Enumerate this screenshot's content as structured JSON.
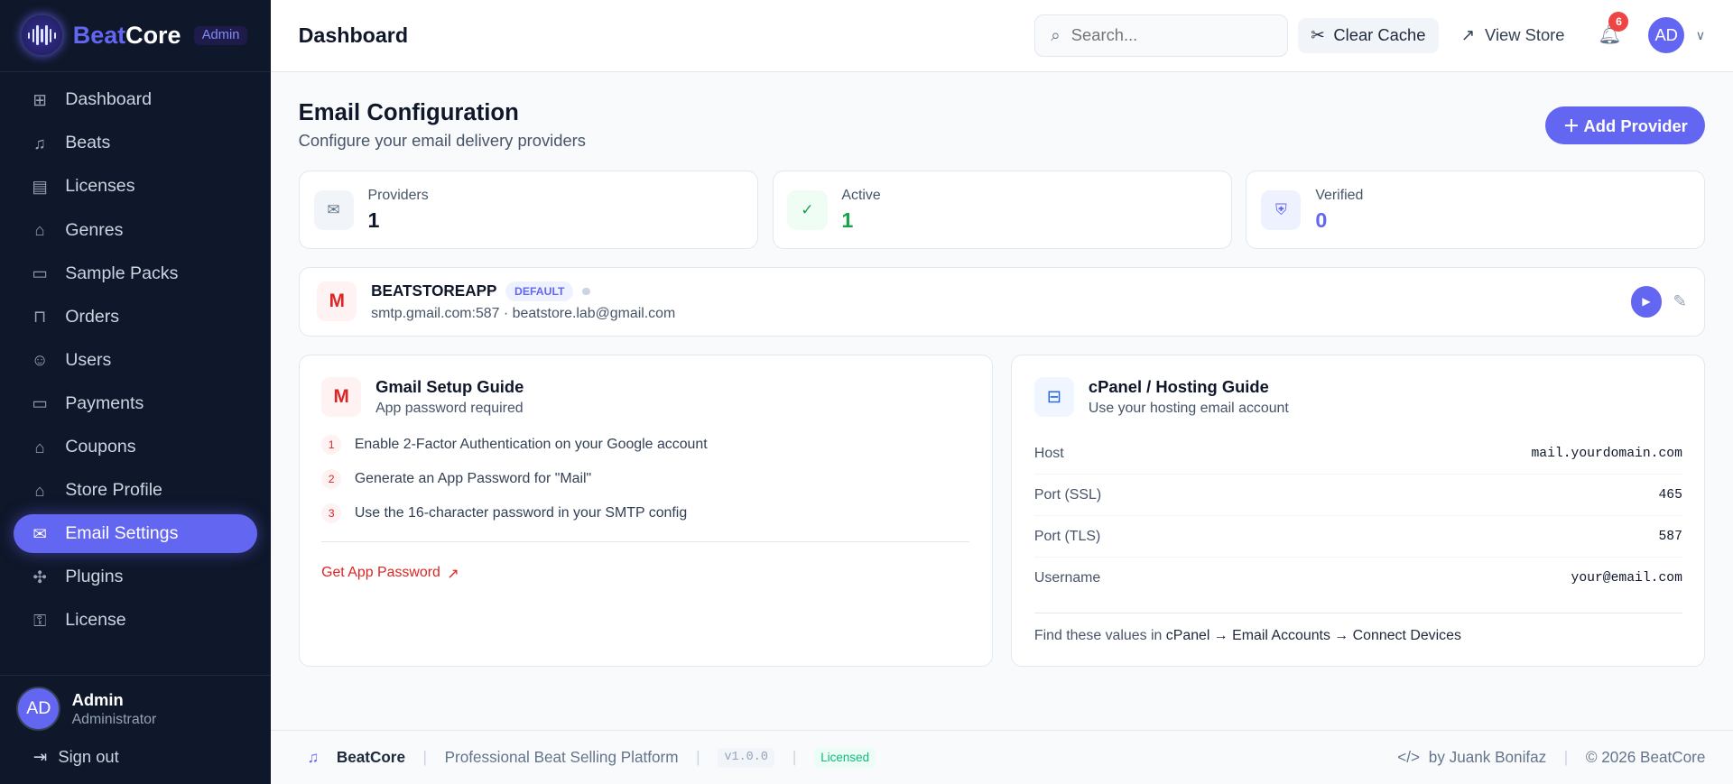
{
  "brand": {
    "name_a": "Beat",
    "name_b": "Core",
    "badge": "Admin"
  },
  "sidebar": {
    "items": [
      {
        "label": "Dashboard",
        "icon": "grid-icon"
      },
      {
        "label": "Beats",
        "icon": "music-icon"
      },
      {
        "label": "Licenses",
        "icon": "file-icon"
      },
      {
        "label": "Genres",
        "icon": "tag-icon"
      },
      {
        "label": "Sample Packs",
        "icon": "archive-icon"
      },
      {
        "label": "Orders",
        "icon": "bag-icon"
      },
      {
        "label": "Users",
        "icon": "users-icon"
      },
      {
        "label": "Payments",
        "icon": "card-icon"
      },
      {
        "label": "Coupons",
        "icon": "tag-icon"
      },
      {
        "label": "Store Profile",
        "icon": "store-icon"
      },
      {
        "label": "Email Settings",
        "icon": "mail-icon",
        "active": true
      },
      {
        "label": "Plugins",
        "icon": "puzzle-icon"
      },
      {
        "label": "License",
        "icon": "key-icon"
      }
    ],
    "user": {
      "initials": "AD",
      "name": "Admin",
      "role": "Administrator"
    },
    "signout": "Sign out"
  },
  "header": {
    "title": "Dashboard",
    "search_placeholder": "Search...",
    "clear_cache": "Clear Cache",
    "view_store": "View Store",
    "notifications": "6",
    "avatar": "AD"
  },
  "page": {
    "title": "Email Configuration",
    "subtitle": "Configure your email delivery providers",
    "add_provider": "Add Provider"
  },
  "stats": [
    {
      "label": "Providers",
      "value": "1",
      "color": "#0f172a"
    },
    {
      "label": "Active",
      "value": "1",
      "color": "#16a34a"
    },
    {
      "label": "Verified",
      "value": "0",
      "color": "#6366f1"
    }
  ],
  "provider": {
    "icon": "M",
    "name": "BEATSTOREAPP",
    "badge": "DEFAULT",
    "details": "smtp.gmail.com:587 · beatstore.lab@gmail.com"
  },
  "gmail": {
    "icon": "M",
    "title": "Gmail Setup Guide",
    "subtitle": "App password required",
    "steps": [
      {
        "n": "1",
        "text": "Enable 2-Factor Authentication on your Google account"
      },
      {
        "n": "2",
        "text": "Generate an App Password for \"Mail\""
      },
      {
        "n": "3",
        "text": "Use the 16-character password in your SMTP config"
      }
    ],
    "link": "Get App Password"
  },
  "cpanel": {
    "title": "cPanel / Hosting Guide",
    "subtitle": "Use your hosting email account",
    "rows": [
      {
        "k": "Host",
        "v": "mail.yourdomain.com"
      },
      {
        "k": "Port (SSL)",
        "v": "465"
      },
      {
        "k": "Port (TLS)",
        "v": "587"
      },
      {
        "k": "Username",
        "v": "your@email.com"
      }
    ],
    "note_prefix": "Find these values in ",
    "note_path": "cPanel → Email Accounts → Connect Devices"
  },
  "footer": {
    "brand": "BeatCore",
    "tagline": "Professional Beat Selling Platform",
    "version": "v1.0.0",
    "licensed": "Licensed",
    "by": "by Juank Bonifaz",
    "copyright": "© 2026 BeatCore"
  },
  "colors": {
    "accent": "#6366f1",
    "sidebar": "#0f172a",
    "gmail": "#dc2626"
  }
}
